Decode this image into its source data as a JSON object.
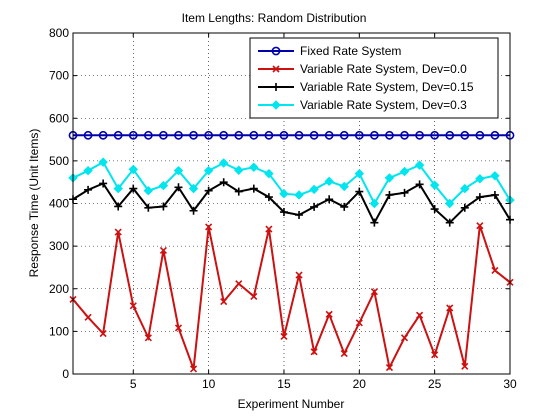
{
  "chart_data": {
    "type": "line",
    "title": "Item Lengths: Random Distribution",
    "xlabel": "Experiment Number",
    "ylabel": "Response Time (Unit Items)",
    "xlim": [
      1,
      30
    ],
    "ylim": [
      0,
      800
    ],
    "xticks": [
      5,
      10,
      15,
      20,
      25,
      30
    ],
    "yticks": [
      0,
      100,
      200,
      300,
      400,
      500,
      600,
      700,
      800
    ],
    "grid": true,
    "legend_position": "top-right",
    "x": [
      1,
      2,
      3,
      4,
      5,
      6,
      7,
      8,
      9,
      10,
      11,
      12,
      13,
      14,
      15,
      16,
      17,
      18,
      19,
      20,
      21,
      22,
      23,
      24,
      25,
      26,
      27,
      28,
      29,
      30
    ],
    "series": [
      {
        "name": "Fixed Rate System",
        "color": "#0000aa",
        "marker": "circle",
        "values": [
          560,
          560,
          560,
          560,
          560,
          560,
          560,
          560,
          560,
          560,
          560,
          560,
          560,
          560,
          560,
          560,
          560,
          560,
          560,
          560,
          560,
          560,
          560,
          560,
          560,
          560,
          560,
          560,
          560,
          560
        ]
      },
      {
        "name": "Variable Rate System, Dev=0.0",
        "color": "#cc1111",
        "marker": "x",
        "values": [
          175,
          133,
          95,
          333,
          160,
          85,
          290,
          108,
          12,
          345,
          170,
          212,
          182,
          340,
          88,
          232,
          52,
          140,
          48,
          120,
          193,
          15,
          85,
          138,
          45,
          155,
          18,
          348,
          243,
          215
        ]
      },
      {
        "name": "Variable Rate System, Dev=0.15",
        "color": "#000000",
        "marker": "plus",
        "values": [
          410,
          432,
          447,
          393,
          435,
          390,
          393,
          438,
          383,
          430,
          450,
          428,
          435,
          415,
          380,
          373,
          392,
          410,
          392,
          428,
          355,
          420,
          425,
          445,
          387,
          355,
          390,
          415,
          420,
          362
        ]
      },
      {
        "name": "Variable Rate System, Dev=0.3",
        "color": "#00e5ee",
        "marker": "diamond",
        "values": [
          460,
          477,
          497,
          435,
          480,
          430,
          442,
          477,
          435,
          477,
          495,
          478,
          485,
          470,
          423,
          420,
          433,
          452,
          440,
          470,
          400,
          460,
          475,
          490,
          443,
          400,
          435,
          458,
          465,
          408
        ]
      }
    ]
  }
}
